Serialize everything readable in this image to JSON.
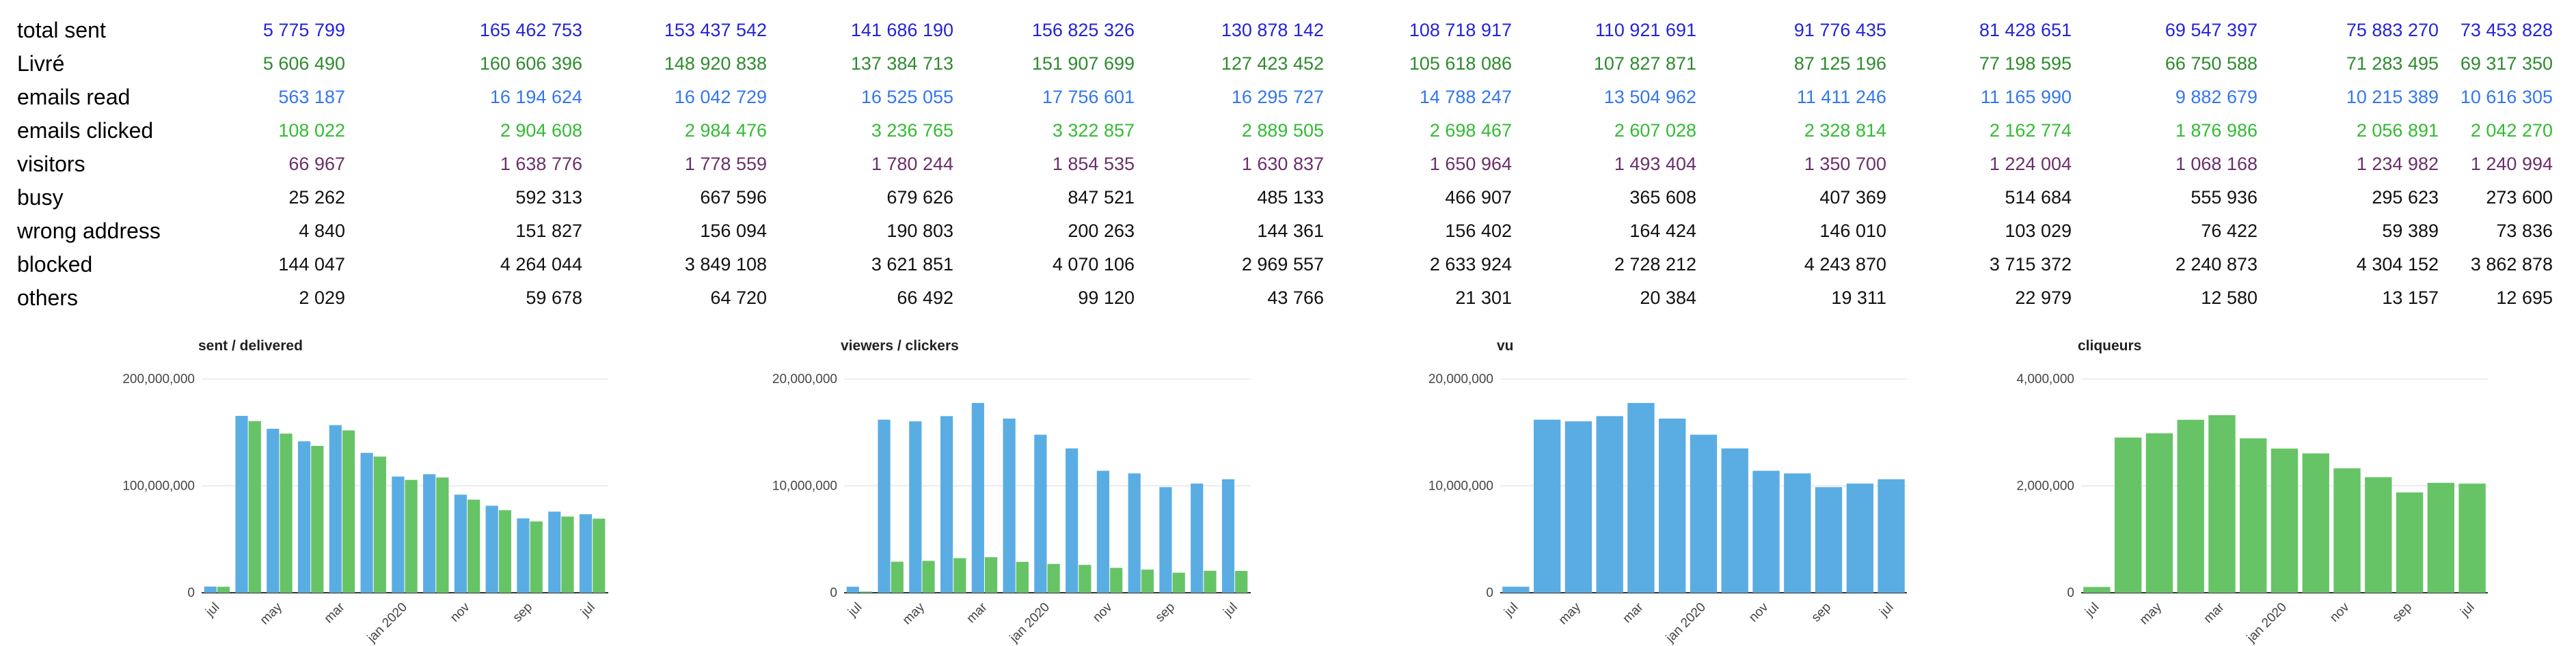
{
  "table": {
    "rows": [
      {
        "label": "total sent",
        "color": "#2424d9",
        "values": [
          "5 775 799",
          "165 462 753",
          "153 437 542",
          "141 686 190",
          "156 825 326",
          "130 878 142",
          "108 718 917",
          "110 921 691",
          "91 776 435",
          "81 428 651",
          "69 547 397",
          "75 883 270",
          "73 453 828"
        ]
      },
      {
        "label": "Livré",
        "color": "#2e8b2e",
        "values": [
          "5 606 490",
          "160 606 396",
          "148 920 838",
          "137 384 713",
          "151 907 699",
          "127 423 452",
          "105 618 086",
          "107 827 871",
          "87 125 196",
          "77 198 595",
          "66 750 588",
          "71 283 495",
          "69 317 350"
        ]
      },
      {
        "label": "emails read",
        "color": "#3377ee",
        "values": [
          "563 187",
          "16 194 624",
          "16 042 729",
          "16 525 055",
          "17 756 601",
          "16 295 727",
          "14 788 247",
          "13 504 962",
          "11 411 246",
          "11 165 990",
          "9 882 679",
          "10 215 389",
          "10 616 305"
        ]
      },
      {
        "label": "emails clicked",
        "color": "#33bb33",
        "values": [
          "108 022",
          "2 904 608",
          "2 984 476",
          "3 236 765",
          "3 322 857",
          "2 889 505",
          "2 698 467",
          "2 607 028",
          "2 328 814",
          "2 162 774",
          "1 876 986",
          "2 056 891",
          "2 042 270"
        ]
      },
      {
        "label": "visitors",
        "color": "#6b2f6b",
        "values": [
          "66 967",
          "1 638 776",
          "1 778 559",
          "1 780 244",
          "1 854 535",
          "1 630 837",
          "1 650 964",
          "1 493 404",
          "1 350 700",
          "1 224 004",
          "1 068 168",
          "1 234 982",
          "1 240 994"
        ]
      },
      {
        "label": "busy",
        "color": "#111111",
        "values": [
          "25 262",
          "592 313",
          "667 596",
          "679 626",
          "847 521",
          "485 133",
          "466 907",
          "365 608",
          "407 369",
          "514 684",
          "555 936",
          "295 623",
          "273 600"
        ]
      },
      {
        "label": "wrong address",
        "color": "#111111",
        "values": [
          "4 840",
          "151 827",
          "156 094",
          "190 803",
          "200 263",
          "144 361",
          "156 402",
          "164 424",
          "146 010",
          "103 029",
          "76 422",
          "59 389",
          "73 836"
        ]
      },
      {
        "label": "blocked",
        "color": "#111111",
        "values": [
          "144 047",
          "4 264 044",
          "3 849 108",
          "3 621 851",
          "4 070 106",
          "2 969 557",
          "2 633 924",
          "2 728 212",
          "4 243 870",
          "3 715 372",
          "2 240 873",
          "4 304 152",
          "3 862 878"
        ]
      },
      {
        "label": "others",
        "color": "#111111",
        "values": [
          "2 029",
          "59 678",
          "64 720",
          "66 492",
          "99 120",
          "43 766",
          "21 301",
          "20 384",
          "19 311",
          "22 979",
          "12 580",
          "13 157",
          "12 695"
        ]
      }
    ]
  },
  "chart_data": [
    {
      "type": "bar",
      "title": "sent / delivered",
      "x_ticks": [
        "jul",
        "may",
        "mar",
        "jan 2020",
        "nov",
        "sep",
        "jul"
      ],
      "y_ticks": [
        "0",
        "100,000,000",
        "200,000,000"
      ],
      "ylim": [
        0,
        200000000
      ],
      "grid": true,
      "legend": "none",
      "series": [
        {
          "color": "#5aade3",
          "values": [
            5775799,
            165462753,
            153437542,
            141686190,
            156825326,
            130878142,
            108718917,
            110921691,
            91776435,
            81428651,
            69547397,
            75883270,
            73453828
          ]
        },
        {
          "color": "#66c466",
          "values": [
            5606490,
            160606396,
            148920838,
            137384713,
            151907699,
            127423452,
            105618086,
            107827871,
            87125196,
            77198595,
            66750588,
            71283495,
            69317350
          ]
        }
      ]
    },
    {
      "type": "bar",
      "title": "viewers / clickers",
      "x_ticks": [
        "jul",
        "may",
        "mar",
        "jan 2020",
        "nov",
        "sep",
        "jul"
      ],
      "y_ticks": [
        "0",
        "10,000,000",
        "20,000,000"
      ],
      "ylim": [
        0,
        20000000
      ],
      "grid": true,
      "legend": "none",
      "series": [
        {
          "color": "#5aade3",
          "values": [
            563187,
            16194624,
            16042729,
            16525055,
            17756601,
            16295727,
            14788247,
            13504962,
            11411246,
            11165990,
            9882679,
            10215389,
            10616305
          ]
        },
        {
          "color": "#66c466",
          "values": [
            108022,
            2904608,
            2984476,
            3236765,
            3322857,
            2889505,
            2698467,
            2607028,
            2328814,
            2162774,
            1876986,
            2056891,
            2042270
          ]
        }
      ]
    },
    {
      "type": "bar",
      "title": "vu",
      "x_ticks": [
        "jul",
        "may",
        "mar",
        "jan 2020",
        "nov",
        "sep",
        "jul"
      ],
      "y_ticks": [
        "0",
        "10,000,000",
        "20,000,000"
      ],
      "ylim": [
        0,
        20000000
      ],
      "grid": true,
      "legend": "none",
      "series": [
        {
          "color": "#5aade3",
          "values": [
            563187,
            16194624,
            16042729,
            16525055,
            17756601,
            16295727,
            14788247,
            13504962,
            11411246,
            11165990,
            9882679,
            10215389,
            10616305
          ]
        }
      ]
    },
    {
      "type": "bar",
      "title": "cliqueurs",
      "x_ticks": [
        "jul",
        "may",
        "mar",
        "jan 2020",
        "nov",
        "sep",
        "jul"
      ],
      "y_ticks": [
        "0",
        "2,000,000",
        "4,000,000"
      ],
      "ylim": [
        0,
        4000000
      ],
      "grid": true,
      "legend": "none",
      "series": [
        {
          "color": "#66c466",
          "values": [
            108022,
            2904608,
            2984476,
            3236765,
            3322857,
            2889505,
            2698467,
            2607028,
            2328814,
            2162774,
            1876986,
            2056891,
            2042270
          ]
        }
      ]
    }
  ]
}
